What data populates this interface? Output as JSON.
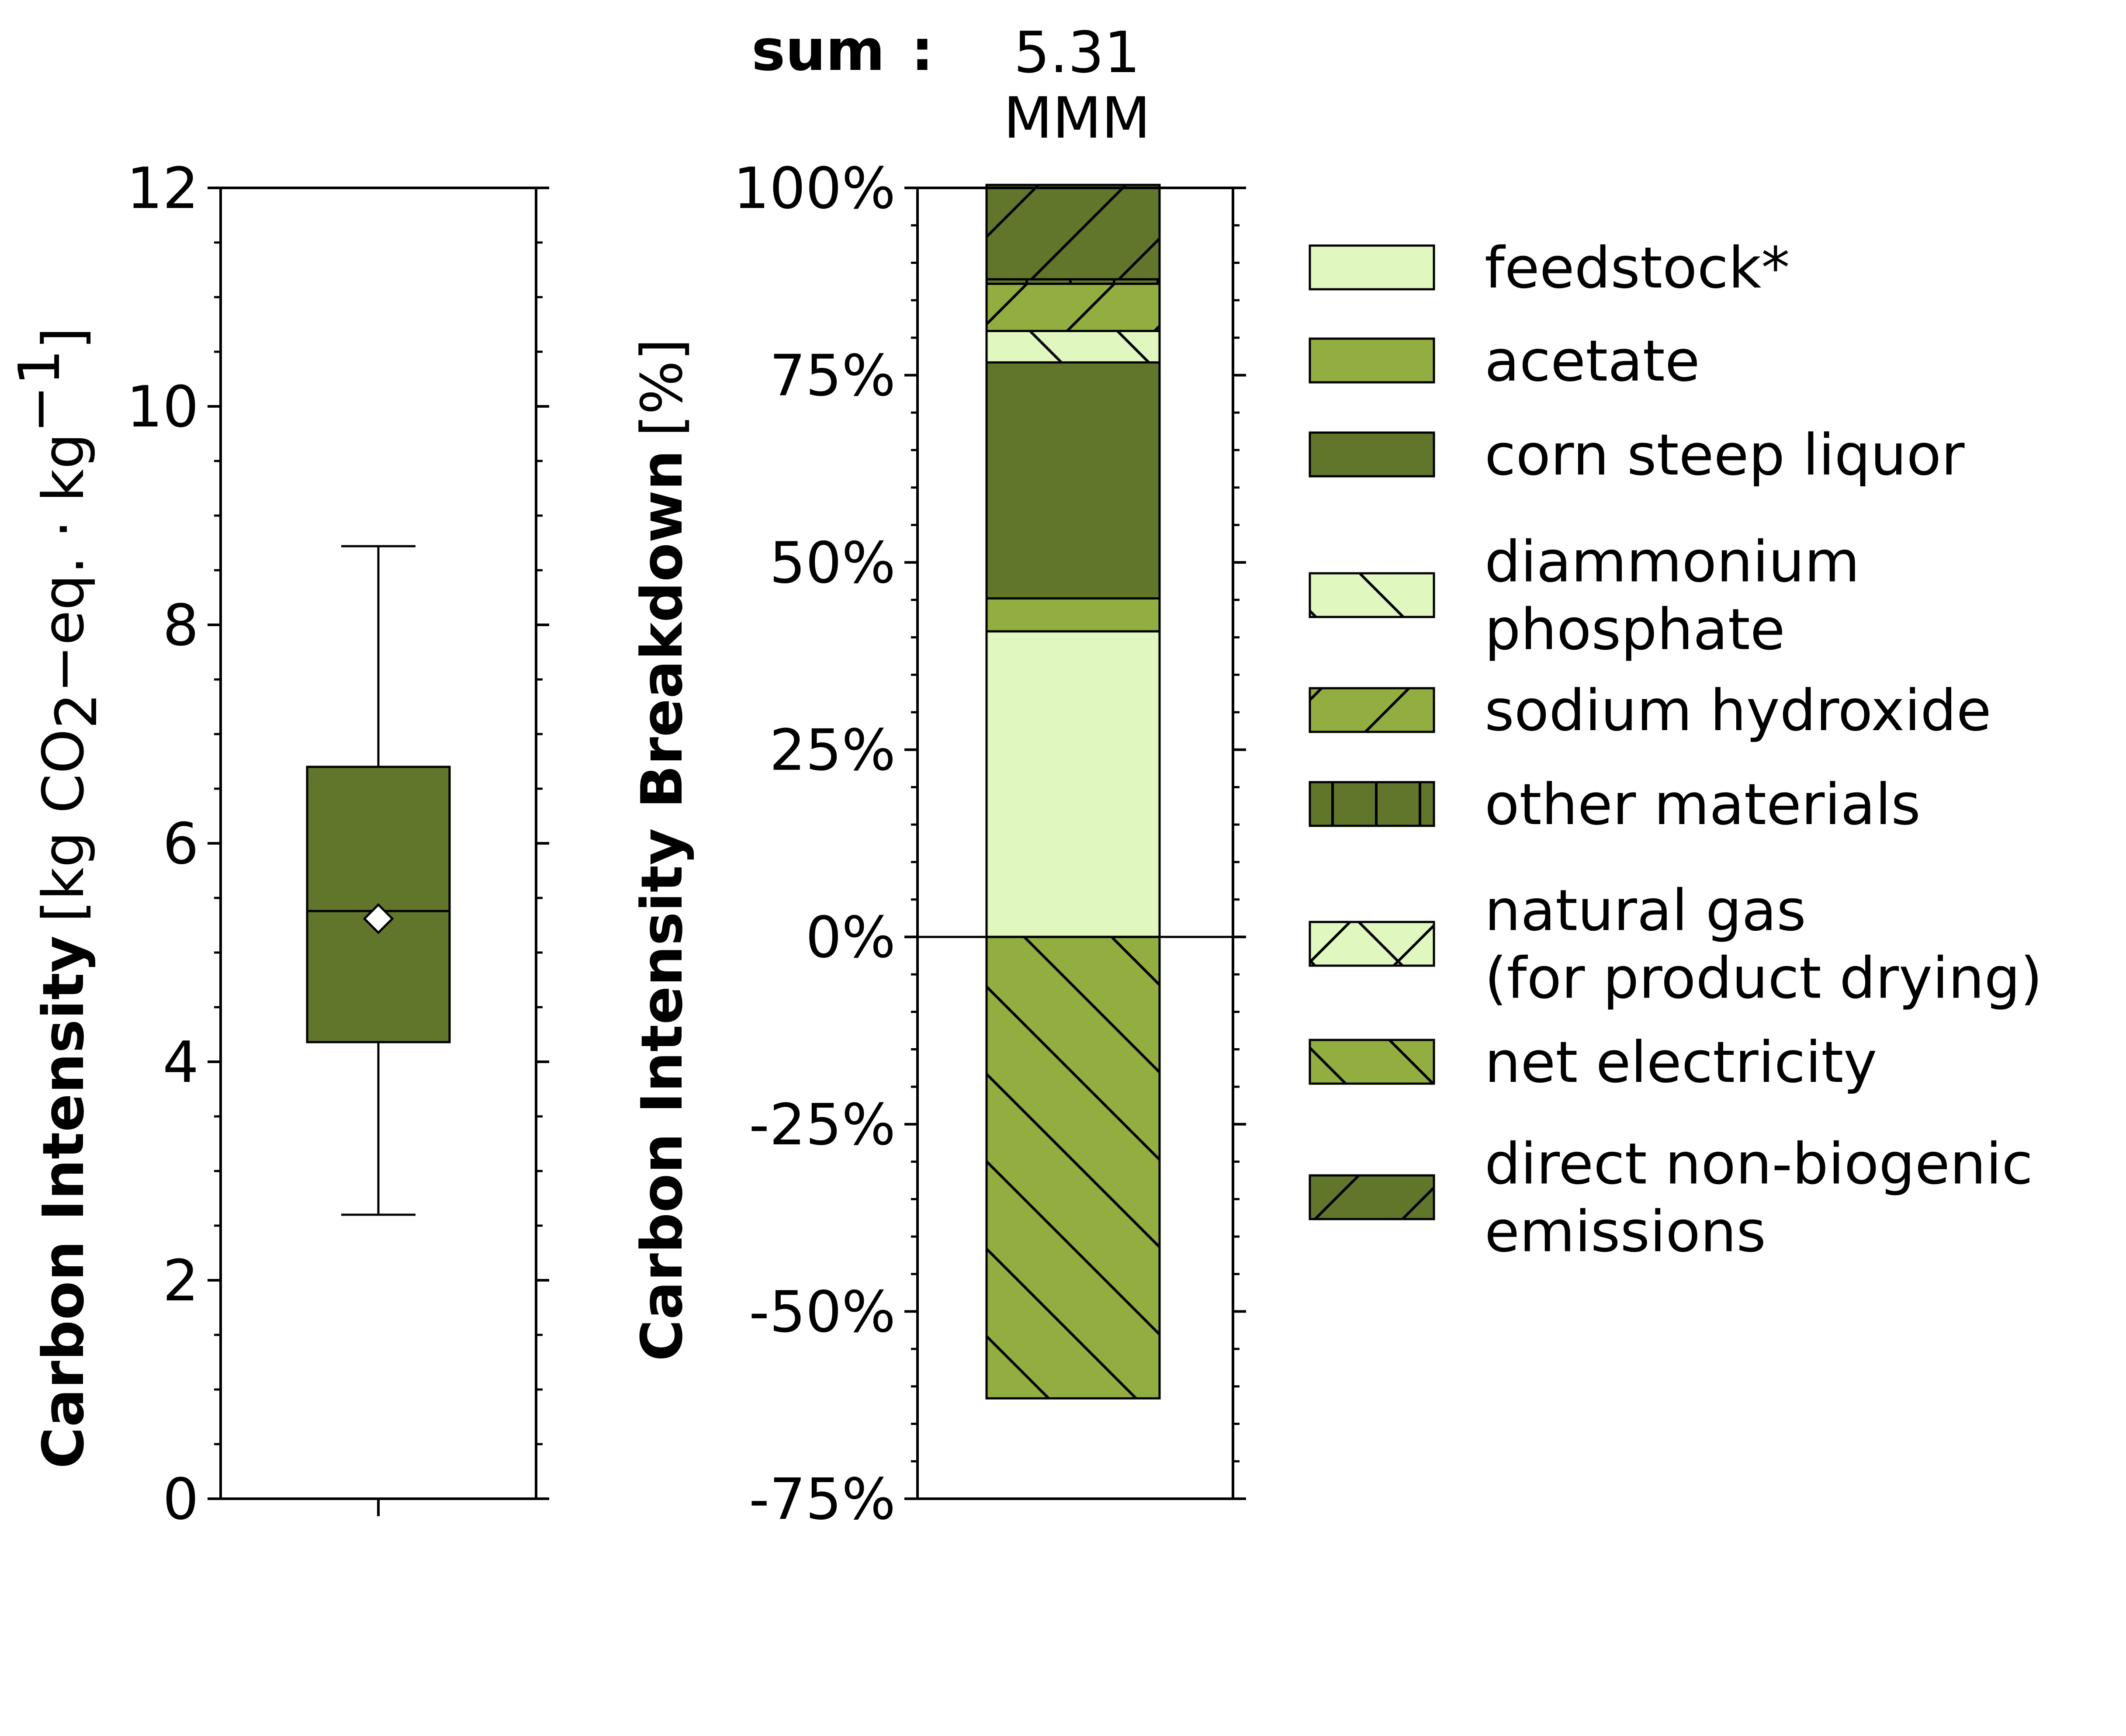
{
  "colors": {
    "light": "#e0f7c0",
    "medium": "#92ad40",
    "dark": "#61762b",
    "stroke": "#000000"
  },
  "sum": {
    "label": "sum",
    "colon": ":",
    "value": "5.31",
    "unit": "MMM"
  },
  "chart_data": [
    {
      "type": "box",
      "ylabel_bold": "Carbon Intensity",
      "ylabel_unit_open": "[kg CO",
      "ylabel_unit_sub": "2",
      "ylabel_unit_mid": "−eq. · kg",
      "ylabel_unit_sup": "−1",
      "ylabel_unit_close": "]",
      "ylim": [
        0,
        12
      ],
      "yticks": [
        0,
        2,
        4,
        6,
        8,
        10,
        12
      ],
      "ytick_labels": [
        "0",
        "2",
        "4",
        "6",
        "8",
        "10",
        "12"
      ],
      "box": {
        "whisker_low": 2.6,
        "q1": 4.18,
        "median": 5.38,
        "q3": 6.7,
        "whisker_high": 8.72,
        "mean": 5.31
      },
      "color": "#61762b"
    },
    {
      "type": "stacked_bar",
      "ylabel": "Carbon Intensity Breakdown [%]",
      "ylabel_bold": "Carbon Intensity Breakdown",
      "ylabel_unit": "[%]",
      "ylim": [
        -75,
        100
      ],
      "yticks": [
        -75,
        -50,
        -25,
        0,
        25,
        50,
        75,
        100
      ],
      "ytick_labels": [
        "-75%",
        "-50%",
        "-25%",
        "0%",
        "25%",
        "50%",
        "75%",
        "100%"
      ],
      "legend_position": "right",
      "series": [
        {
          "name": "feedstock*",
          "value": 40.8,
          "color": "#e0f7c0",
          "hatch": "none"
        },
        {
          "name": "acetate",
          "value": 4.4,
          "color": "#92ad40",
          "hatch": "none"
        },
        {
          "name": "corn steep liquor",
          "value": 31.5,
          "color": "#61762b",
          "hatch": "none"
        },
        {
          "name": "diammonium phosphate",
          "value": 4.2,
          "color": "#e0f7c0",
          "hatch": "backslash"
        },
        {
          "name": "sodium hydroxide",
          "value": 6.3,
          "color": "#92ad40",
          "hatch": "slash"
        },
        {
          "name": "other materials",
          "value": 0.6,
          "color": "#61762b",
          "hatch": "vertical"
        },
        {
          "name": "natural gas (for product drying)",
          "value": 0,
          "color": "#e0f7c0",
          "hatch": "cross"
        },
        {
          "name": "net electricity",
          "value": -61.6,
          "color": "#92ad40",
          "hatch": "backslash"
        },
        {
          "name": "direct non-biogenic emissions",
          "value": 12.6,
          "color": "#61762b",
          "hatch": "slash"
        }
      ]
    }
  ],
  "legend": [
    {
      "lines": [
        "feedstock*"
      ],
      "color": "#e0f7c0",
      "hatch": "none"
    },
    {
      "lines": [
        "acetate"
      ],
      "color": "#92ad40",
      "hatch": "none"
    },
    {
      "lines": [
        "corn steep liquor"
      ],
      "color": "#61762b",
      "hatch": "none"
    },
    {
      "lines": [
        "diammonium",
        "phosphate"
      ],
      "color": "#e0f7c0",
      "hatch": "backslash"
    },
    {
      "lines": [
        "sodium hydroxide"
      ],
      "color": "#92ad40",
      "hatch": "slash"
    },
    {
      "lines": [
        "other materials"
      ],
      "color": "#61762b",
      "hatch": "vertical"
    },
    {
      "lines": [
        "natural gas",
        "(for product drying)"
      ],
      "color": "#e0f7c0",
      "hatch": "cross"
    },
    {
      "lines": [
        "net electricity"
      ],
      "color": "#92ad40",
      "hatch": "backslash"
    },
    {
      "lines": [
        "direct non-biogenic",
        "emissions"
      ],
      "color": "#61762b",
      "hatch": "slash"
    }
  ]
}
